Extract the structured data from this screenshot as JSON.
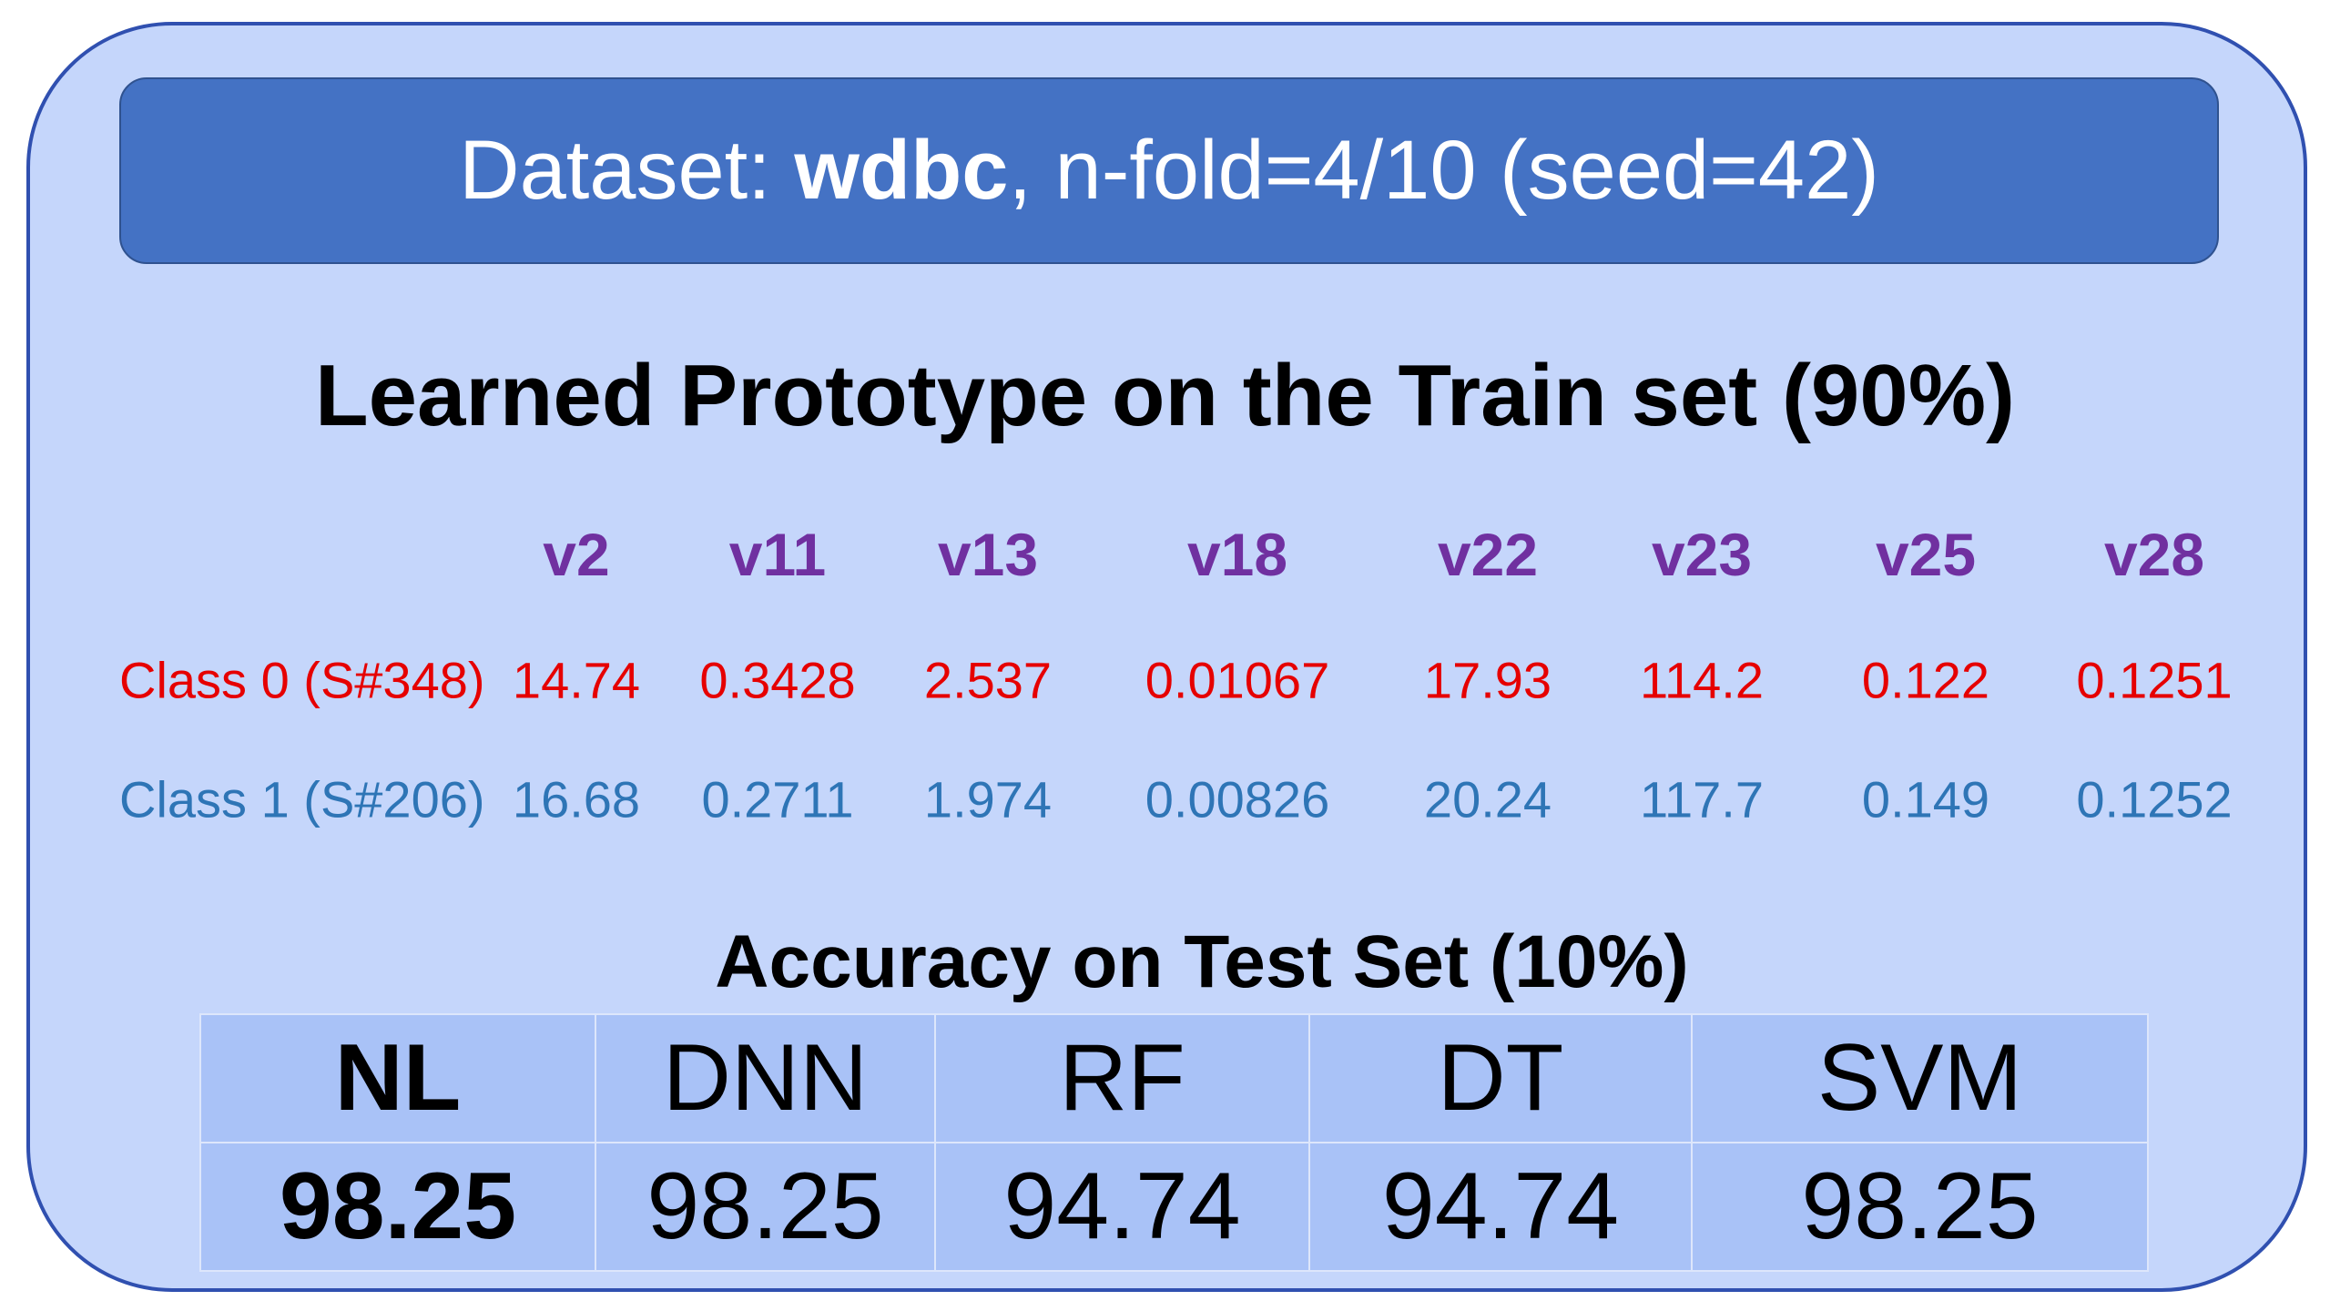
{
  "header": {
    "prefix": "Dataset: ",
    "dataset": "wdbc",
    "suffix": ", n-fold=4/10 (seed=42)"
  },
  "prototype": {
    "title": "Learned Prototype on the Train set (90%)",
    "columns": [
      "v2",
      "v11",
      "v13",
      "v18",
      "v22",
      "v23",
      "v25",
      "v28"
    ],
    "rows": [
      {
        "label": "Class 0 (S#348)",
        "values": [
          "14.74",
          "0.3428",
          "2.537",
          "0.01067",
          "17.93",
          "114.2",
          "0.122",
          "0.1251"
        ]
      },
      {
        "label": "Class 1 (S#206)",
        "values": [
          "16.68",
          "0.2711",
          "1.974",
          "0.00826",
          "20.24",
          "117.7",
          "0.149",
          "0.1252"
        ]
      }
    ]
  },
  "accuracy": {
    "title": "Accuracy on Test Set (10%)",
    "headers": [
      "NL",
      "DNN",
      "RF",
      "DT",
      "SVM"
    ],
    "values": [
      "98.25",
      "98.25",
      "94.74",
      "94.74",
      "98.25"
    ]
  }
}
